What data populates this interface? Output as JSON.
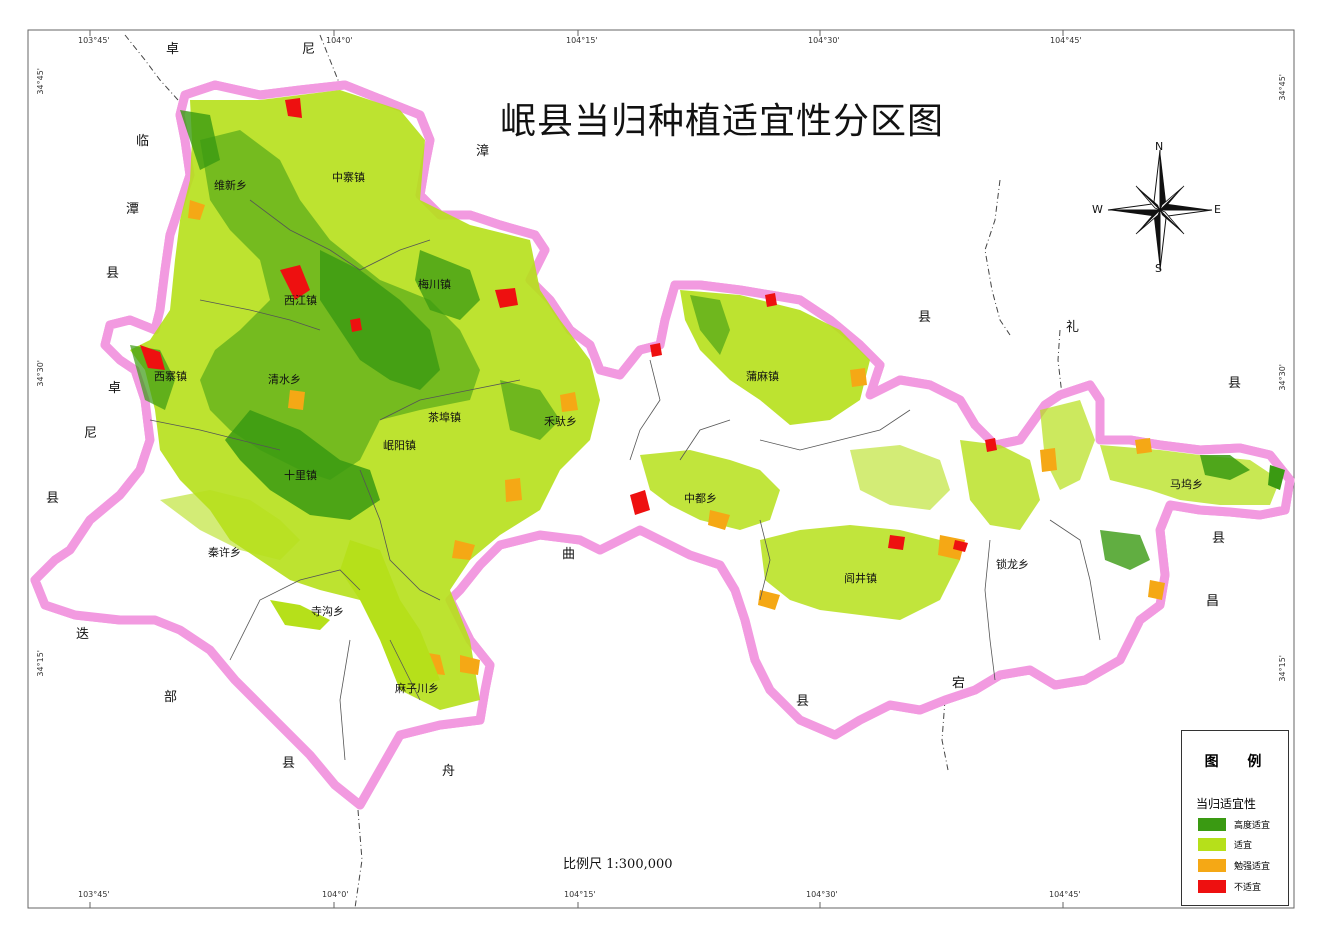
{
  "title": "岷县当归种植适宜性分区图",
  "scale_text": "比例尺 1:300,000",
  "grid_labels": {
    "top": [
      "103°45'",
      "104°0'",
      "104°15'",
      "104°30'",
      "104°45'"
    ],
    "bottom": [
      "103°45'",
      "104°0'",
      "104°15'",
      "104°30'",
      "104°45'"
    ],
    "left": [
      "34°45'",
      "34°30'",
      "34°15'"
    ],
    "right": [
      "34°45'",
      "34°30'",
      "34°15'"
    ]
  },
  "compass": {
    "n": "N",
    "s": "S",
    "e": "E",
    "w": "W"
  },
  "legend": {
    "title": "图  例",
    "subtitle": "当归适宜性",
    "items": [
      {
        "label": "高度适宜",
        "color": "#3a9a12"
      },
      {
        "label": "适宜",
        "color": "#b6e01a"
      },
      {
        "label": "勉强适宜",
        "color": "#f5a815"
      },
      {
        "label": "不适宜",
        "color": "#ee1010"
      }
    ]
  },
  "outside_labels": {
    "zhuoni_top_1": "卓",
    "zhuoni_top_2": "尼",
    "zhang_1": "漳",
    "zhang_2": "县",
    "lintan_1": "临",
    "lintan_2": "潭",
    "lintan_3": "县",
    "zhuoni_left_1": "卓",
    "zhuoni_left_2": "尼",
    "zhuoni_left_3": "县",
    "diebu_1": "迭",
    "diebu_2": "部",
    "diebu_3": "县",
    "zhouqu_1": "舟",
    "zhouqu_2": "曲",
    "li_1": "礼",
    "li_2": "县",
    "dangchang_1": "宕",
    "dangchang_2": "昌",
    "dangchang_3": "县",
    "bottom_xian": "县"
  },
  "towns": {
    "weixin": "维新乡",
    "zhongzhai": "中寨镇",
    "meichuan": "梅川镇",
    "xijiang": "西江镇",
    "xizhai": "西寨镇",
    "qingshui": "清水乡",
    "chaping": "茶埠镇",
    "heshui": "禾驮乡",
    "minyang": "岷阳镇",
    "shili": "十里镇",
    "qinxu": "秦许乡",
    "sigou": "寺沟乡",
    "maziquan": "麻子川乡",
    "puma": "蒲麻镇",
    "zhongdu": "中都乡",
    "lvjing": "闾井镇",
    "suolong": "锁龙乡",
    "mawu": "马坞乡"
  }
}
